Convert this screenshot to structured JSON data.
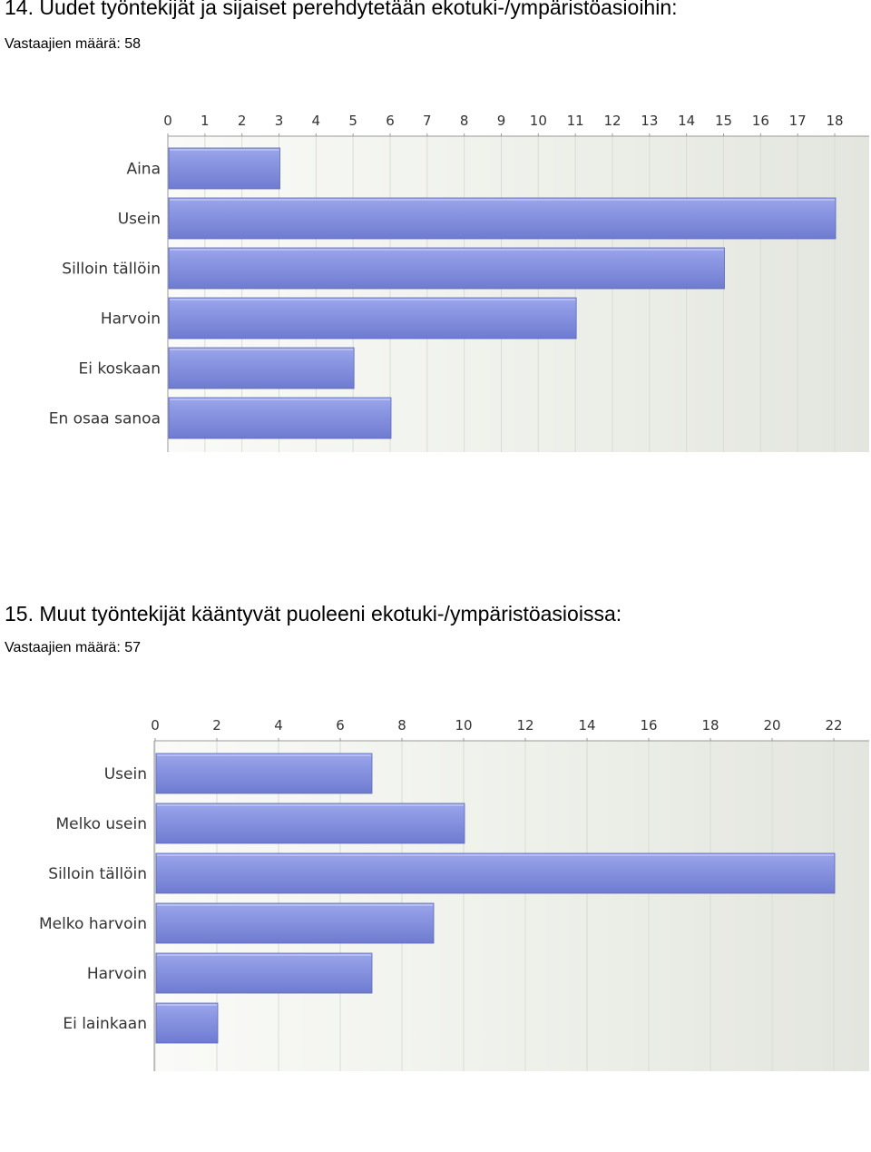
{
  "questions": [
    {
      "title": "14. Uudet työntekijät ja sijaiset perehdytetään ekotuki-/ympäristöasioihin:",
      "count_text": "Vastaajien määrä: 58"
    },
    {
      "title": "15. Muut työntekijät kääntyvät puoleeni ekotuki-/ympäristöasioissa:",
      "count_text": "Vastaajien määrä: 57"
    }
  ],
  "colors": {
    "bar_top": "#9aa5ec",
    "bar_bottom": "#6f7bd0",
    "bar_edge": "#5d68b8",
    "plot_bg_light": "#fafbf8",
    "plot_bg_dark": "#e3e6de",
    "grid": "#d9dcd4",
    "axis": "#9a9a9a"
  },
  "chart_data": [
    {
      "type": "bar",
      "orientation": "horizontal",
      "categories": [
        "Aina",
        "Usein",
        "Silloin tällöin",
        "Harvoin",
        "Ei koskaan",
        "En osaa sanoa"
      ],
      "values": [
        3,
        18,
        15,
        11,
        5,
        6
      ],
      "xlim": [
        0,
        18
      ],
      "ticks": [
        "0",
        "1",
        "2",
        "3",
        "4",
        "5",
        "6",
        "7",
        "8",
        "9",
        "10",
        "11",
        "12",
        "13",
        "14",
        "15",
        "16",
        "17",
        "18"
      ],
      "tick_values": [
        0,
        1,
        2,
        3,
        4,
        5,
        6,
        7,
        8,
        9,
        10,
        11,
        12,
        13,
        14,
        15,
        16,
        17,
        18
      ],
      "grid": true,
      "legend": "none"
    },
    {
      "type": "bar",
      "orientation": "horizontal",
      "categories": [
        "Usein",
        "Melko usein",
        "Silloin tällöin",
        "Melko harvoin",
        "Harvoin",
        "Ei lainkaan"
      ],
      "values": [
        7,
        10,
        22,
        9,
        7,
        2
      ],
      "xlim": [
        0,
        22
      ],
      "ticks": [
        "0",
        "2",
        "4",
        "6",
        "8",
        "10",
        "12",
        "14",
        "16",
        "18",
        "20",
        "22"
      ],
      "tick_values": [
        0,
        2,
        4,
        6,
        8,
        10,
        12,
        14,
        16,
        18,
        20,
        22
      ],
      "grid": true,
      "legend": "none"
    }
  ]
}
